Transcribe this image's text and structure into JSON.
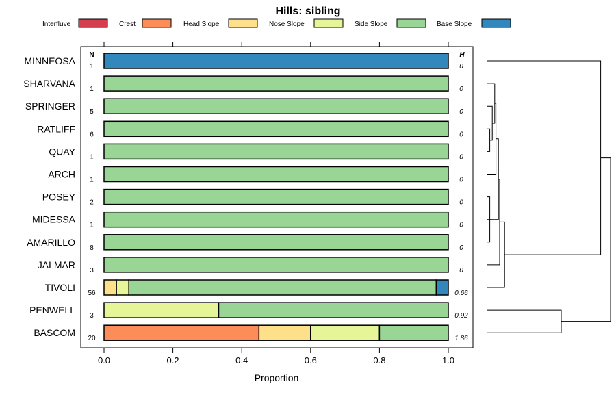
{
  "chart_data": {
    "type": "stacked-bar-horizontal",
    "title": "Hills: sibling",
    "xlabel": "Proportion",
    "ylabel": "",
    "xlim": [
      0,
      1
    ],
    "xticks": [
      "0.0",
      "0.2",
      "0.4",
      "0.6",
      "0.8",
      "1.0"
    ],
    "n_header": "N",
    "h_header": "H",
    "legend": [
      {
        "name": "Interfluve",
        "color": "#d53e4f"
      },
      {
        "name": "Crest",
        "color": "#fc8d59"
      },
      {
        "name": "Head Slope",
        "color": "#fee08b"
      },
      {
        "name": "Nose Slope",
        "color": "#e6f598"
      },
      {
        "name": "Side Slope",
        "color": "#99d594"
      },
      {
        "name": "Base Slope",
        "color": "#3288bd"
      }
    ],
    "rows": [
      {
        "label": "MINNEOSA",
        "n": "1",
        "h": "0",
        "values": [
          0,
          0,
          0,
          0,
          0,
          1
        ]
      },
      {
        "label": "SHARVANA",
        "n": "1",
        "h": "0",
        "values": [
          0,
          0,
          0,
          0,
          1,
          0
        ]
      },
      {
        "label": "SPRINGER",
        "n": "5",
        "h": "0",
        "values": [
          0,
          0,
          0,
          0,
          1,
          0
        ]
      },
      {
        "label": "RATLIFF",
        "n": "6",
        "h": "0",
        "values": [
          0,
          0,
          0,
          0,
          1,
          0
        ]
      },
      {
        "label": "QUAY",
        "n": "1",
        "h": "0",
        "values": [
          0,
          0,
          0,
          0,
          1,
          0
        ]
      },
      {
        "label": "ARCH",
        "n": "1",
        "h": "0",
        "values": [
          0,
          0,
          0,
          0,
          1,
          0
        ]
      },
      {
        "label": "POSEY",
        "n": "2",
        "h": "0",
        "values": [
          0,
          0,
          0,
          0,
          1,
          0
        ]
      },
      {
        "label": "MIDESSA",
        "n": "1",
        "h": "0",
        "values": [
          0,
          0,
          0,
          0,
          1,
          0
        ]
      },
      {
        "label": "AMARILLO",
        "n": "8",
        "h": "0",
        "values": [
          0,
          0,
          0,
          0,
          1,
          0
        ]
      },
      {
        "label": "JALMAR",
        "n": "3",
        "h": "0",
        "values": [
          0,
          0,
          0,
          0,
          1,
          0
        ]
      },
      {
        "label": "TIVOLI",
        "n": "56",
        "h": "0.66",
        "values": [
          0,
          0,
          0.036,
          0.036,
          0.893,
          0.035
        ]
      },
      {
        "label": "PENWELL",
        "n": "3",
        "h": "0.92",
        "values": [
          0,
          0,
          0,
          0.333,
          0.667,
          0
        ]
      },
      {
        "label": "BASCOM",
        "n": "20",
        "h": "1.86",
        "values": [
          0,
          0.45,
          0.15,
          0.2,
          0.2,
          0
        ]
      }
    ],
    "dendrogram": {
      "merges": [
        [
          3,
          4,
          0.02
        ],
        [
          6,
          8,
          0.02
        ],
        [
          2,
          13,
          0.04
        ],
        [
          1,
          15,
          0.06
        ],
        [
          7,
          14,
          0.06
        ],
        [
          16,
          5,
          0.07
        ],
        [
          18,
          17,
          0.09
        ],
        [
          19,
          9,
          0.1
        ],
        [
          20,
          10,
          0.14
        ],
        [
          11,
          12,
          0.6
        ],
        [
          0,
          21,
          0.92
        ],
        [
          22,
          23,
          1.0
        ]
      ]
    }
  }
}
